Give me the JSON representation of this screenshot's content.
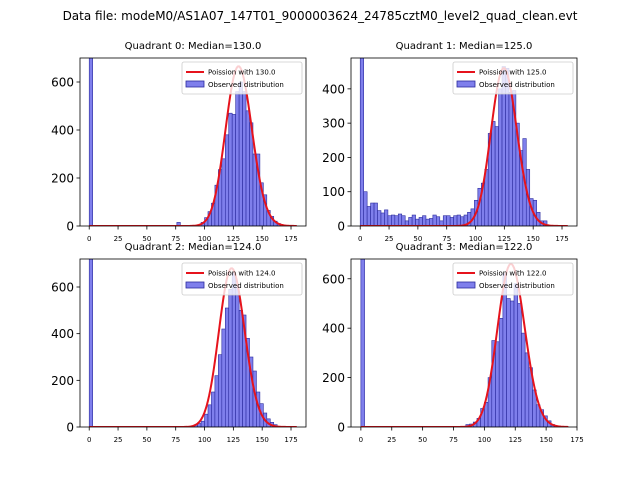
{
  "figure": {
    "suptitle": "Data file: modeM0/AS1A07_147T01_9000003624_24785cztM0_level2_quad_clean.evt"
  },
  "chart_data": [
    {
      "type": "bar",
      "title": "Quadrant 0: Median=130.0",
      "xlim": [
        -8,
        188
      ],
      "ylim": [
        0,
        700
      ],
      "xticks": [
        0,
        25,
        50,
        75,
        100,
        125,
        150,
        175
      ],
      "yticks": [
        0,
        200,
        400,
        600
      ],
      "bin_width": 3,
      "bars": [
        {
          "x": 0,
          "y": 700
        },
        {
          "x": 76,
          "y": 15
        },
        {
          "x": 97,
          "y": 15
        },
        {
          "x": 100,
          "y": 35
        },
        {
          "x": 103,
          "y": 60
        },
        {
          "x": 106,
          "y": 95
        },
        {
          "x": 109,
          "y": 170
        },
        {
          "x": 112,
          "y": 235
        },
        {
          "x": 115,
          "y": 280
        },
        {
          "x": 118,
          "y": 380
        },
        {
          "x": 121,
          "y": 470
        },
        {
          "x": 124,
          "y": 465
        },
        {
          "x": 127,
          "y": 560
        },
        {
          "x": 130,
          "y": 600
        },
        {
          "x": 133,
          "y": 560
        },
        {
          "x": 136,
          "y": 480
        },
        {
          "x": 139,
          "y": 430
        },
        {
          "x": 142,
          "y": 300
        },
        {
          "x": 145,
          "y": 300
        },
        {
          "x": 148,
          "y": 180
        },
        {
          "x": 151,
          "y": 130
        },
        {
          "x": 154,
          "y": 65
        },
        {
          "x": 157,
          "y": 40
        },
        {
          "x": 160,
          "y": 20
        },
        {
          "x": 163,
          "y": 10
        }
      ],
      "poisson_mean": 130.0,
      "poisson_peak": 665,
      "poisson_xrange": [
        0,
        180
      ],
      "legend": [
        "Poission with 130.0",
        "Observed distribution"
      ]
    },
    {
      "type": "bar",
      "title": "Quadrant 1: Median=125.0",
      "xlim": [
        -8,
        188
      ],
      "ylim": [
        0,
        490
      ],
      "xticks": [
        0,
        25,
        50,
        75,
        100,
        125,
        150,
        175
      ],
      "yticks": [
        0,
        100,
        200,
        300,
        400
      ],
      "bin_width": 3,
      "bars": [
        {
          "x": 0,
          "y": 490
        },
        {
          "x": 3,
          "y": 100
        },
        {
          "x": 6,
          "y": 57
        },
        {
          "x": 9,
          "y": 67
        },
        {
          "x": 12,
          "y": 67
        },
        {
          "x": 15,
          "y": 45
        },
        {
          "x": 18,
          "y": 38
        },
        {
          "x": 21,
          "y": 47
        },
        {
          "x": 24,
          "y": 30
        },
        {
          "x": 27,
          "y": 32
        },
        {
          "x": 30,
          "y": 30
        },
        {
          "x": 33,
          "y": 35
        },
        {
          "x": 36,
          "y": 30
        },
        {
          "x": 39,
          "y": 15
        },
        {
          "x": 42,
          "y": 25
        },
        {
          "x": 45,
          "y": 32
        },
        {
          "x": 48,
          "y": 20
        },
        {
          "x": 51,
          "y": 25
        },
        {
          "x": 54,
          "y": 30
        },
        {
          "x": 57,
          "y": 20
        },
        {
          "x": 60,
          "y": 22
        },
        {
          "x": 63,
          "y": 32
        },
        {
          "x": 66,
          "y": 27
        },
        {
          "x": 69,
          "y": 15
        },
        {
          "x": 72,
          "y": 30
        },
        {
          "x": 75,
          "y": 30
        },
        {
          "x": 78,
          "y": 25
        },
        {
          "x": 81,
          "y": 30
        },
        {
          "x": 84,
          "y": 32
        },
        {
          "x": 87,
          "y": 27
        },
        {
          "x": 90,
          "y": 32
        },
        {
          "x": 93,
          "y": 40
        },
        {
          "x": 96,
          "y": 50
        },
        {
          "x": 99,
          "y": 75
        },
        {
          "x": 102,
          "y": 110
        },
        {
          "x": 105,
          "y": 125
        },
        {
          "x": 108,
          "y": 165
        },
        {
          "x": 111,
          "y": 270
        },
        {
          "x": 114,
          "y": 305
        },
        {
          "x": 117,
          "y": 290
        },
        {
          "x": 120,
          "y": 400
        },
        {
          "x": 123,
          "y": 465
        },
        {
          "x": 126,
          "y": 460
        },
        {
          "x": 129,
          "y": 390
        },
        {
          "x": 132,
          "y": 395
        },
        {
          "x": 135,
          "y": 300
        },
        {
          "x": 138,
          "y": 220
        },
        {
          "x": 141,
          "y": 255
        },
        {
          "x": 144,
          "y": 165
        },
        {
          "x": 147,
          "y": 80
        },
        {
          "x": 150,
          "y": 75
        },
        {
          "x": 153,
          "y": 40
        },
        {
          "x": 156,
          "y": 15
        },
        {
          "x": 159,
          "y": 15
        }
      ],
      "poisson_mean": 125.0,
      "poisson_peak": 460,
      "poisson_xrange": [
        0,
        180
      ],
      "legend": [
        "Poission with 125.0",
        "Observed distribution"
      ]
    },
    {
      "type": "bar",
      "title": "Quadrant 2: Median=124.0",
      "xlim": [
        -8,
        188
      ],
      "ylim": [
        0,
        720
      ],
      "xticks": [
        0,
        25,
        50,
        75,
        100,
        125,
        150,
        175
      ],
      "yticks": [
        0,
        200,
        400,
        600
      ],
      "bin_width": 3,
      "bars": [
        {
          "x": 0,
          "y": 720
        },
        {
          "x": 91,
          "y": 10
        },
        {
          "x": 94,
          "y": 15
        },
        {
          "x": 97,
          "y": 25
        },
        {
          "x": 100,
          "y": 55
        },
        {
          "x": 103,
          "y": 95
        },
        {
          "x": 106,
          "y": 150
        },
        {
          "x": 109,
          "y": 220
        },
        {
          "x": 112,
          "y": 310
        },
        {
          "x": 115,
          "y": 420
        },
        {
          "x": 118,
          "y": 510
        },
        {
          "x": 121,
          "y": 590
        },
        {
          "x": 124,
          "y": 660
        },
        {
          "x": 127,
          "y": 600
        },
        {
          "x": 130,
          "y": 500
        },
        {
          "x": 133,
          "y": 480
        },
        {
          "x": 136,
          "y": 380
        },
        {
          "x": 139,
          "y": 300
        },
        {
          "x": 142,
          "y": 240
        },
        {
          "x": 145,
          "y": 150
        },
        {
          "x": 148,
          "y": 100
        },
        {
          "x": 151,
          "y": 60
        },
        {
          "x": 154,
          "y": 35
        },
        {
          "x": 157,
          "y": 20
        },
        {
          "x": 160,
          "y": 10
        }
      ],
      "poisson_mean": 124.0,
      "poisson_peak": 680,
      "poisson_xrange": [
        0,
        180
      ],
      "legend": [
        "Poission with 124.0",
        "Observed distribution"
      ]
    },
    {
      "type": "bar",
      "title": "Quadrant 3: Median=122.0",
      "xlim": [
        -8,
        175
      ],
      "ylim": [
        0,
        680
      ],
      "xticks": [
        0,
        25,
        50,
        75,
        100,
        125,
        150,
        175
      ],
      "yticks": [
        0,
        200,
        400,
        600
      ],
      "bin_width": 3,
      "bars": [
        {
          "x": 0,
          "y": 680
        },
        {
          "x": 85,
          "y": 10
        },
        {
          "x": 88,
          "y": 12
        },
        {
          "x": 91,
          "y": 20
        },
        {
          "x": 94,
          "y": 35
        },
        {
          "x": 97,
          "y": 75
        },
        {
          "x": 100,
          "y": 100
        },
        {
          "x": 103,
          "y": 200
        },
        {
          "x": 106,
          "y": 350
        },
        {
          "x": 109,
          "y": 345
        },
        {
          "x": 112,
          "y": 440
        },
        {
          "x": 115,
          "y": 620
        },
        {
          "x": 118,
          "y": 520
        },
        {
          "x": 121,
          "y": 510
        },
        {
          "x": 124,
          "y": 580
        },
        {
          "x": 127,
          "y": 500
        },
        {
          "x": 130,
          "y": 380
        },
        {
          "x": 133,
          "y": 300
        },
        {
          "x": 136,
          "y": 240
        },
        {
          "x": 139,
          "y": 150
        },
        {
          "x": 142,
          "y": 90
        },
        {
          "x": 145,
          "y": 70
        },
        {
          "x": 148,
          "y": 45
        },
        {
          "x": 151,
          "y": 25
        },
        {
          "x": 154,
          "y": 10
        }
      ],
      "poisson_mean": 122.0,
      "poisson_peak": 660,
      "poisson_xrange": [
        0,
        168
      ],
      "legend": [
        "Poission with 122.0",
        "Observed distribution"
      ]
    }
  ],
  "colors": {
    "bar_fill": "#7f7fec",
    "bar_edge": "#2b2b9e",
    "line": "#e6131c",
    "background": "#ffffff"
  }
}
